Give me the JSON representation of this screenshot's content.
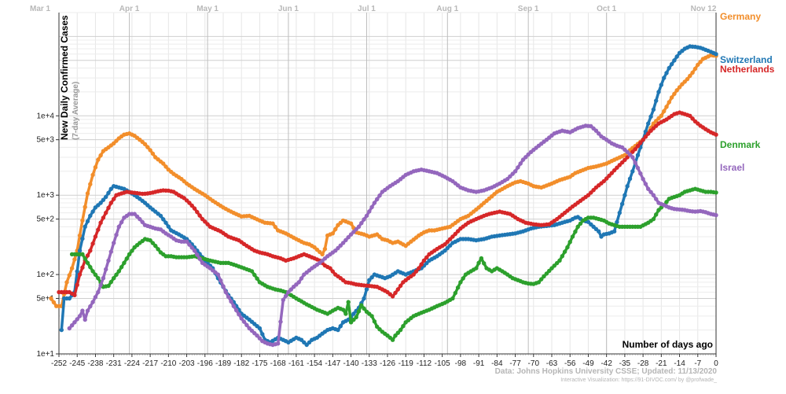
{
  "chart_data": {
    "type": "line",
    "title": "",
    "ylabel": "New Daily Confirmed Cases",
    "ylabel_sub": "(7-day Average)",
    "xlabel": "Number of days ago",
    "y_scale": "log",
    "ylim": [
      1,
      20000
    ],
    "xlim": [
      -252,
      0
    ],
    "grid": true,
    "legend": "right",
    "month_labels": [
      {
        "label": "Mar 1",
        "x": -256
      },
      {
        "label": "Apr 1",
        "x": -225
      },
      {
        "label": "May 1",
        "x": -195
      },
      {
        "label": "Jun 1",
        "x": -164
      },
      {
        "label": "Jul 1",
        "x": -134
      },
      {
        "label": "Aug 1",
        "x": -103
      },
      {
        "label": "Sep 1",
        "x": -72
      },
      {
        "label": "Oct 1",
        "x": -42
      },
      {
        "label": "Nov 12",
        "x": 0
      }
    ],
    "x_ticks": [
      -252,
      -245,
      -238,
      -231,
      -224,
      -217,
      -210,
      -203,
      -196,
      -189,
      -182,
      -175,
      -168,
      -161,
      -154,
      -147,
      -140,
      -133,
      -126,
      -119,
      -112,
      -105,
      -98,
      -91,
      -84,
      -77,
      -70,
      -63,
      -56,
      -49,
      -42,
      -35,
      -28,
      -21,
      -14,
      -7,
      0
    ],
    "y_ticks": [
      {
        "value": 1,
        "label": "1e+1"
      },
      {
        "value": 5,
        "label": "5e+1"
      },
      {
        "value": 10,
        "label": "1e+2"
      },
      {
        "value": 50,
        "label": "5e+2"
      },
      {
        "value": 100,
        "label": "1e+3"
      },
      {
        "value": 500,
        "label": "5e+3"
      },
      {
        "value": 1000,
        "label": "1e+4"
      }
    ],
    "series": [
      {
        "name": "Germany",
        "color": "#f28e2b",
        "x": [
          -255,
          -253,
          -251,
          -249,
          -247,
          -245,
          -243,
          -241,
          -239,
          -237,
          -235,
          -233,
          -231,
          -229,
          -227,
          -225,
          -223,
          -221,
          -219,
          -217,
          -215,
          -212,
          -210,
          -208,
          -205,
          -203,
          -200,
          -196,
          -193,
          -189,
          -186,
          -182,
          -179,
          -175,
          -173,
          -170,
          -168,
          -165,
          -161,
          -158,
          -156,
          -154,
          -151,
          -150,
          -149,
          -147,
          -145,
          -143,
          -140,
          -138,
          -135,
          -133,
          -130,
          -128,
          -126,
          -124,
          -122,
          -119,
          -117,
          -114,
          -112,
          -110,
          -108,
          -105,
          -102,
          -98,
          -95,
          -91,
          -88,
          -84,
          -80,
          -77,
          -75,
          -72,
          -70,
          -67,
          -63,
          -60,
          -56,
          -54,
          -49,
          -46,
          -42,
          -40,
          -35,
          -33,
          -28,
          -26,
          -24,
          -21,
          -19,
          -17,
          -15,
          -13,
          -11,
          -9,
          -7,
          -5,
          -3,
          -2,
          0
        ],
        "values": [
          5,
          4,
          4,
          8,
          12,
          20,
          48,
          105,
          180,
          280,
          360,
          400,
          450,
          520,
          580,
          600,
          560,
          500,
          440,
          370,
          300,
          250,
          210,
          185,
          160,
          140,
          120,
          100,
          85,
          70,
          62,
          54,
          55,
          48,
          45,
          44,
          36,
          33,
          28,
          25,
          24,
          22,
          18,
          21,
          31,
          33,
          42,
          48,
          44,
          34,
          32,
          30,
          32,
          28,
          27,
          25,
          26,
          23,
          26,
          31,
          34,
          36,
          36,
          38,
          40,
          50,
          55,
          70,
          85,
          110,
          130,
          145,
          150,
          140,
          130,
          125,
          140,
          155,
          170,
          190,
          220,
          230,
          250,
          270,
          320,
          370,
          500,
          620,
          800,
          1000,
          1300,
          1700,
          2100,
          2500,
          2900,
          3500,
          4400,
          5200,
          5600,
          5800,
          5700
        ]
      },
      {
        "name": "Switzerland",
        "color": "#1f77b4",
        "x": [
          -251,
          -250,
          -248,
          -246,
          -244,
          -242,
          -240,
          -238,
          -236,
          -234,
          -232,
          -231,
          -229,
          -227,
          -225,
          -223,
          -221,
          -219,
          -217,
          -215,
          -213,
          -211,
          -209,
          -206,
          -203,
          -201,
          -199,
          -196,
          -193,
          -191,
          -189,
          -187,
          -185,
          -182,
          -179,
          -175,
          -173,
          -171,
          -168,
          -166,
          -164,
          -161,
          -159,
          -157,
          -155,
          -153,
          -151,
          -149,
          -147,
          -145,
          -143,
          -141,
          -139,
          -137,
          -135,
          -133,
          -131,
          -129,
          -127,
          -125,
          -122,
          -119,
          -116,
          -113,
          -110,
          -107,
          -104,
          -101,
          -98,
          -95,
          -92,
          -89,
          -86,
          -83,
          -80,
          -77,
          -74,
          -71,
          -68,
          -65,
          -62,
          -59,
          -56,
          -55,
          -54,
          -53,
          -51,
          -49,
          -47,
          -45,
          -44,
          -43,
          -41,
          -39,
          -37,
          -35,
          -34,
          -32,
          -30,
          -28,
          -26,
          -24,
          -22,
          -20,
          -18,
          -16,
          -14,
          -12,
          -10,
          -8,
          -6,
          -4,
          -2,
          0
        ],
        "values": [
          2,
          5,
          5,
          6,
          20,
          40,
          55,
          70,
          80,
          95,
          120,
          130,
          125,
          120,
          110,
          100,
          90,
          80,
          70,
          62,
          55,
          45,
          36,
          32,
          28,
          24,
          20,
          15,
          12,
          9,
          7,
          5.5,
          4.5,
          3.2,
          2.7,
          2.1,
          1.5,
          1.4,
          1.6,
          1.5,
          1.4,
          1.6,
          1.5,
          1.3,
          1.5,
          1.6,
          1.8,
          2.0,
          2.1,
          2.0,
          2.5,
          2.7,
          3.2,
          3.8,
          5,
          8.5,
          10,
          9.5,
          9,
          9.5,
          11,
          10,
          11,
          12,
          15,
          17,
          20,
          25,
          28,
          28,
          27,
          28,
          30,
          31,
          32,
          33,
          35,
          38,
          40,
          41,
          42,
          45,
          48,
          50,
          52,
          53,
          48,
          46,
          40,
          35,
          30,
          32,
          33,
          35,
          60,
          100,
          130,
          200,
          320,
          500,
          800,
          1200,
          2000,
          3000,
          4000,
          5000,
          6200,
          7000,
          7500,
          7400,
          7200,
          6800,
          6400,
          6000
        ]
      },
      {
        "name": "Netherlands",
        "color": "#d62728",
        "x": [
          -252,
          -250,
          -248,
          -246,
          -244,
          -242,
          -240,
          -238,
          -236,
          -234,
          -232,
          -230,
          -228,
          -226,
          -224,
          -222,
          -220,
          -218,
          -216,
          -214,
          -212,
          -210,
          -208,
          -206,
          -204,
          -202,
          -200,
          -197,
          -194,
          -190,
          -187,
          -183,
          -180,
          -177,
          -175,
          -172,
          -170,
          -167,
          -165,
          -162,
          -160,
          -158,
          -156,
          -154,
          -152,
          -150,
          -148,
          -146,
          -144,
          -142,
          -140,
          -138,
          -135,
          -133,
          -130,
          -128,
          -126,
          -124,
          -122,
          -120,
          -118,
          -116,
          -114,
          -112,
          -110,
          -107,
          -104,
          -101,
          -98,
          -95,
          -92,
          -89,
          -87,
          -85,
          -83,
          -81,
          -79,
          -76,
          -73,
          -70,
          -67,
          -64,
          -61,
          -58,
          -55,
          -52,
          -49,
          -46,
          -43,
          -40,
          -37,
          -34,
          -31,
          -28,
          -25,
          -22,
          -19,
          -16,
          -14,
          -12,
          -10,
          -8,
          -6,
          -4,
          -2,
          0
        ],
        "values": [
          6,
          6,
          6,
          5.5,
          10,
          15,
          20,
          30,
          45,
          60,
          80,
          100,
          105,
          110,
          108,
          106,
          104,
          105,
          108,
          112,
          115,
          114,
          110,
          100,
          92,
          80,
          68,
          50,
          40,
          35,
          30,
          27,
          23,
          20,
          19,
          18,
          17,
          16,
          15,
          16,
          17,
          18,
          17,
          16,
          15,
          13,
          12,
          10,
          9,
          8,
          7.8,
          7.5,
          7.3,
          7.2,
          7,
          6.5,
          6,
          5.3,
          6.5,
          8,
          9,
          10,
          12,
          15,
          18,
          21,
          24,
          30,
          38,
          45,
          50,
          55,
          58,
          60,
          62,
          60,
          58,
          50,
          45,
          43,
          42,
          43,
          50,
          60,
          72,
          85,
          100,
          125,
          150,
          190,
          240,
          300,
          380,
          500,
          650,
          800,
          900,
          1050,
          1100,
          1050,
          1000,
          850,
          750,
          680,
          620,
          580
        ]
      },
      {
        "name": "Denmark",
        "color": "#2ca02c",
        "x": [
          -247,
          -245,
          -243,
          -241,
          -239,
          -237,
          -235,
          -233,
          -231,
          -229,
          -227,
          -225,
          -223,
          -221,
          -219,
          -217,
          -215,
          -213,
          -211,
          -209,
          -207,
          -205,
          -203,
          -200,
          -197,
          -194,
          -190,
          -187,
          -184,
          -181,
          -178,
          -175,
          -172,
          -169,
          -167,
          -165,
          -163,
          -161,
          -159,
          -157,
          -155,
          -153,
          -151,
          -149,
          -147,
          -145,
          -143,
          -142,
          -141,
          -140,
          -138,
          -136,
          -134,
          -132,
          -130,
          -128,
          -126,
          -125,
          -124,
          -123,
          -121,
          -119,
          -116,
          -113,
          -110,
          -107,
          -104,
          -101,
          -98,
          -96,
          -94,
          -92,
          -91,
          -90,
          -88,
          -86,
          -84,
          -82,
          -80,
          -78,
          -76,
          -74,
          -72,
          -70,
          -68,
          -66,
          -63,
          -60,
          -57,
          -55,
          -53,
          -51,
          -49,
          -47,
          -45,
          -43,
          -41,
          -39,
          -37,
          -35,
          -32,
          -29,
          -26,
          -24,
          -22,
          -20,
          -18,
          -16,
          -14,
          -12,
          -10,
          -8,
          -6,
          -4,
          -2,
          0
        ],
        "values": [
          18,
          18,
          18,
          14,
          11,
          9,
          7,
          7.2,
          9,
          11,
          14,
          18,
          22,
          25,
          28,
          27,
          23,
          19,
          17,
          17,
          16.5,
          16.5,
          16.5,
          17,
          16,
          15,
          14,
          14,
          13,
          12,
          11,
          8,
          7,
          6.5,
          6.3,
          6.0,
          5.5,
          5.0,
          4.6,
          4.2,
          3.9,
          3.6,
          3.4,
          3.2,
          3.5,
          3.8,
          3.6,
          3.2,
          4.5,
          2.5,
          2.9,
          4.1,
          3.4,
          3.0,
          2.2,
          1.9,
          1.7,
          1.6,
          1.5,
          1.7,
          2.0,
          2.5,
          3.0,
          3.3,
          3.6,
          4.0,
          4.4,
          5.0,
          8,
          10,
          11,
          12,
          14,
          16,
          12,
          11,
          12,
          11,
          10,
          9,
          8.5,
          8,
          7.7,
          7.6,
          8,
          9.5,
          12,
          15,
          22,
          30,
          40,
          48,
          52,
          52,
          50,
          48,
          44,
          42,
          40,
          40,
          40,
          40,
          45,
          50,
          65,
          75,
          90,
          95,
          100,
          110,
          115,
          120,
          115,
          110,
          110,
          108
        ]
      },
      {
        "name": "Israel",
        "color": "#9467bd",
        "x": [
          -248,
          -246,
          -244,
          -243,
          -242,
          -241,
          -239,
          -237,
          -235,
          -233,
          -231,
          -229,
          -227,
          -225,
          -223,
          -221,
          -219,
          -217,
          -215,
          -213,
          -211,
          -209,
          -207,
          -205,
          -203,
          -200,
          -197,
          -194,
          -191,
          -188,
          -185,
          -182,
          -179,
          -176,
          -174,
          -172,
          -170,
          -168,
          -166,
          -164,
          -162,
          -160,
          -158,
          -155,
          -152,
          -149,
          -146,
          -143,
          -140,
          -137,
          -134,
          -131,
          -128,
          -125,
          -122,
          -119,
          -116,
          -113,
          -110,
          -107,
          -104,
          -101,
          -98,
          -95,
          -92,
          -89,
          -86,
          -83,
          -80,
          -77,
          -74,
          -71,
          -68,
          -65,
          -62,
          -59,
          -56,
          -53,
          -50,
          -48,
          -46,
          -44,
          -42,
          -40,
          -38,
          -36,
          -34,
          -32,
          -30,
          -28,
          -26,
          -24,
          -22,
          -20,
          -18,
          -16,
          -14,
          -12,
          -10,
          -8,
          -6,
          -4,
          -2,
          0
        ],
        "values": [
          2.1,
          2.5,
          3.0,
          3.5,
          2.7,
          3.5,
          4.5,
          6,
          9,
          15,
          25,
          40,
          52,
          58,
          58,
          50,
          42,
          40,
          38,
          37,
          33,
          30,
          27,
          26,
          26,
          20,
          14,
          12,
          10,
          6,
          4,
          2.8,
          2.1,
          1.7,
          1.45,
          1.35,
          1.3,
          1.35,
          4.8,
          6,
          7,
          8,
          10,
          12,
          14,
          17,
          20,
          25,
          32,
          40,
          55,
          80,
          110,
          130,
          150,
          180,
          200,
          210,
          200,
          190,
          170,
          150,
          125,
          115,
          110,
          115,
          125,
          140,
          160,
          200,
          280,
          350,
          420,
          500,
          600,
          650,
          620,
          700,
          750,
          740,
          650,
          550,
          500,
          450,
          420,
          400,
          350,
          300,
          220,
          160,
          120,
          100,
          80,
          75,
          70,
          67,
          66,
          65,
          63,
          62,
          63,
          61,
          58,
          56
        ]
      }
    ]
  },
  "footer": {
    "source": "Data: Johns Hopkins University CSSE; Updated: 11/13/2020",
    "credit": "Interactive Visualization: https://91-DIVOC.com/ by @profwade_"
  }
}
